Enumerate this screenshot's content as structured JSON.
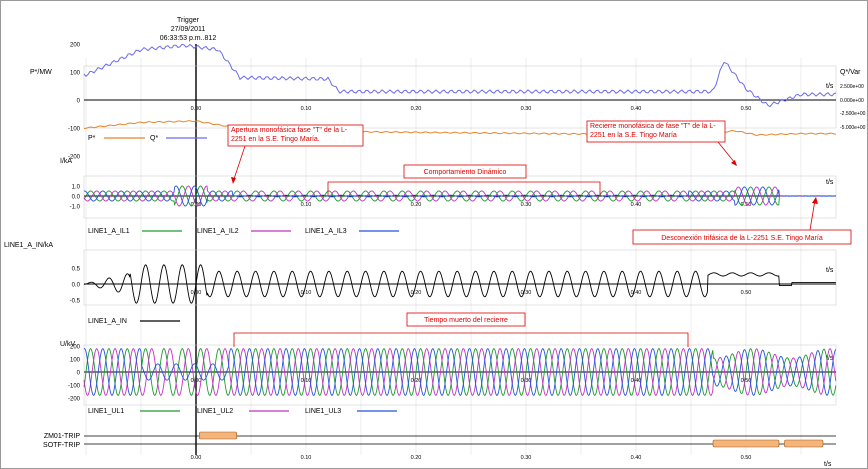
{
  "trigger": {
    "title": "Trigger",
    "date": "27/09/2011",
    "time": "06:33:53 p.m..812"
  },
  "x_ticks": [
    "0.00",
    "0.10",
    "0.20",
    "0.30",
    "0.40",
    "0.50"
  ],
  "t_unit": "t/s",
  "annotations": {
    "apertura": "Apertura monofásica fase \"T\" de la L-2251 en la S.E. Tingo María.",
    "comportamiento": "Comportamiento Dinámico",
    "recierre": "Recierre monofásica de fase \"T\" de la L-2251 en la S.E. Tingo María",
    "desconexion": "Desconexión trifásica de la L-2251 S.E. Tingo María",
    "tiempo_muerto": "Tiempo muerto del recierre"
  },
  "colors": {
    "P": "#e8842a",
    "Q": "#6a6aee",
    "IL1": "#1c9a2c",
    "IL2": "#c233c2",
    "IL3": "#2255dd",
    "IN": "#000000",
    "trip": "#f4b57c",
    "annot": "#e00000"
  },
  "chart_data": [
    {
      "type": "line",
      "ylabel": "P*/MW",
      "ylabel_right": "Q*/Var",
      "ylim": [
        -200,
        200
      ],
      "yticks": [
        "200",
        "100",
        "0",
        "-100",
        "-200"
      ],
      "yticks_right": [
        "2.500e+00",
        "0.000e+00",
        "-2.500e+00",
        "-5.000e+00"
      ],
      "series": [
        {
          "name": "P*",
          "x": [
            -0.1,
            -0.05,
            0.0,
            0.03,
            0.06,
            0.45,
            0.49,
            0.51,
            0.55
          ],
          "y": [
            -100,
            -80,
            -75,
            -95,
            -110,
            -125,
            -110,
            -125,
            -120
          ]
        },
        {
          "name": "Q*",
          "x": [
            -0.1,
            -0.05,
            -0.01,
            0.02,
            0.04,
            0.12,
            0.13,
            0.47,
            0.48,
            0.5,
            0.52,
            0.55
          ],
          "y": [
            90,
            180,
            195,
            180,
            80,
            75,
            30,
            30,
            140,
            40,
            -20,
            20
          ]
        }
      ]
    },
    {
      "type": "line",
      "ylabel": "I/kA",
      "ylim": [
        -1.5,
        1.5
      ],
      "yticks": [
        "1.0",
        "0.0",
        "-1.0"
      ],
      "series": [
        {
          "name": "LINE1_A_IL1"
        },
        {
          "name": "LINE1_A_IL2"
        },
        {
          "name": "LINE1_A_IL3"
        }
      ],
      "frequency_hz": 60,
      "amplitude_kA": 0.5
    },
    {
      "type": "line",
      "ylabel": "LINE1_A_IN/kA",
      "ylim": [
        -1.0,
        1.0
      ],
      "yticks": [
        "0.5",
        "0.0",
        "-0.5"
      ],
      "series": [
        {
          "name": "LINE1_A_IN"
        }
      ],
      "amplitude_kA": 0.4
    },
    {
      "type": "line",
      "ylabel": "U/kV",
      "ylim": [
        -200,
        200
      ],
      "yticks": [
        "200",
        "100",
        "0",
        "-100",
        "-200"
      ],
      "series": [
        {
          "name": "LINE1_UL1"
        },
        {
          "name": "LINE1_UL2"
        },
        {
          "name": "LINE1_UL3"
        }
      ],
      "amplitude_kV": 180
    },
    {
      "type": "bar",
      "categories": [
        "ZM01-TRIP",
        "SOTF-TRIP"
      ],
      "intervals": [
        {
          "signal": "ZM01-TRIP",
          "start": 0.003,
          "end": 0.037
        },
        {
          "signal": "SOTF-TRIP",
          "start": 0.47,
          "end": 0.53
        },
        {
          "signal": "SOTF-TRIP",
          "start": 0.535,
          "end": 0.57
        }
      ]
    }
  ]
}
